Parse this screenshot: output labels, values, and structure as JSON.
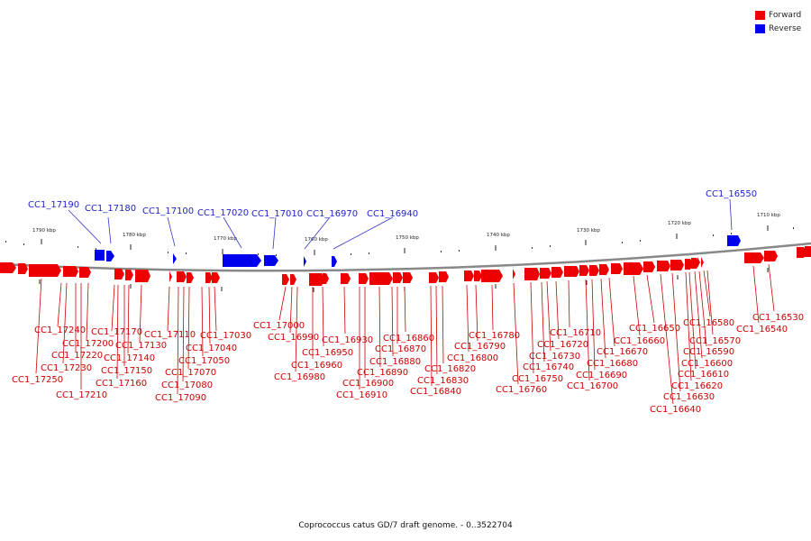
{
  "legend": {
    "forward": {
      "label": "Forward",
      "color": "#ee0000"
    },
    "reverse": {
      "label": "Reverse",
      "color": "#0000ee"
    }
  },
  "caption": "Coprococcus catus GD/7 draft genome. - 0..3522704",
  "ticks": [
    "1790 kbp",
    "1780 kbp",
    "1770 kbp",
    "1760 kbp",
    "1750 kbp",
    "1740 kbp",
    "1730 kbp",
    "1720 kbp",
    "1710 kbp"
  ],
  "top_labels": [
    "CC1_17190",
    "CC1_17180",
    "CC1_17100",
    "CC1_17020",
    "CC1_17010",
    "CC1_16970",
    "CC1_16940",
    "CC1_16550"
  ],
  "bottom_labels": [
    "CC1_17250",
    "CC1_17240",
    "CC1_17230",
    "CC1_17220",
    "CC1_17210",
    "CC1_17200",
    "CC1_17170",
    "CC1_17160",
    "CC1_17150",
    "CC1_17140",
    "CC1_17130",
    "CC1_17110",
    "CC1_17090",
    "CC1_17080",
    "CC1_17070",
    "CC1_17050",
    "CC1_17040",
    "CC1_17030",
    "CC1_17000",
    "CC1_16990",
    "CC1_16980",
    "CC1_16960",
    "CC1_16950",
    "CC1_16930",
    "CC1_16910",
    "CC1_16900",
    "CC1_16890",
    "CC1_16880",
    "CC1_16870",
    "CC1_16860",
    "CC1_16840",
    "CC1_16830",
    "CC1_16820",
    "CC1_16800",
    "CC1_16790",
    "CC1_16780",
    "CC1_16760",
    "CC1_16750",
    "CC1_16740",
    "CC1_16730",
    "CC1_16720",
    "CC1_16710",
    "CC1_16700",
    "CC1_16690",
    "CC1_16680",
    "CC1_16670",
    "CC1_16660",
    "CC1_16650",
    "CC1_16640",
    "CC1_16630",
    "CC1_16620",
    "CC1_16610",
    "CC1_16600",
    "CC1_16590",
    "CC1_16580",
    "CC1_16570",
    "CC1_16540",
    "CC1_16530"
  ]
}
